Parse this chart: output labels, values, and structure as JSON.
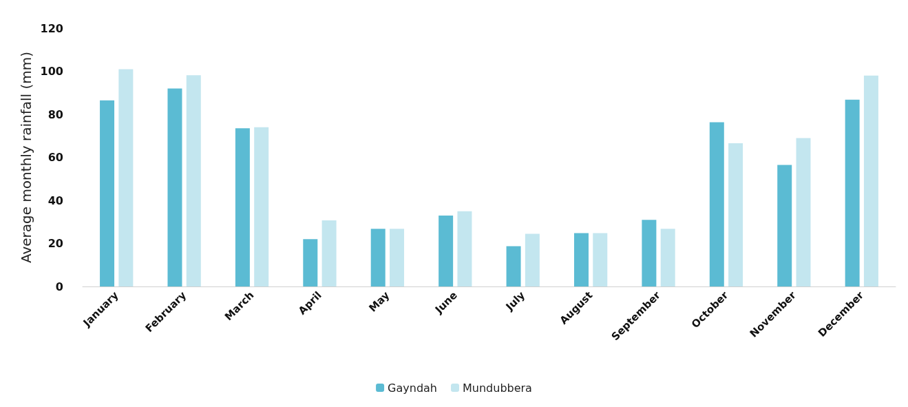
{
  "chart_data": {
    "type": "bar",
    "ylabel": "Average monthly rainfall (mm)",
    "categories": [
      "January",
      "February",
      "March",
      "April",
      "May",
      "June",
      "July",
      "August",
      "September",
      "October",
      "November",
      "December"
    ],
    "series": [
      {
        "name": "Gayndah",
        "color": "#5bbbd3",
        "values": [
          86.5,
          92,
          73.5,
          22,
          26.8,
          33,
          18.7,
          24.8,
          31,
          76.3,
          56.5,
          86.8
        ]
      },
      {
        "name": "Mundubbera",
        "color": "#c3e6ef",
        "values": [
          101,
          98.2,
          74,
          30.7,
          26.8,
          35,
          24.5,
          24.8,
          26.8,
          66.6,
          69,
          98
        ]
      }
    ],
    "ylim": [
      0,
      120
    ],
    "yticks": [
      0,
      20,
      40,
      60,
      80,
      100,
      120
    ],
    "grid": false,
    "legend": "bottom"
  }
}
